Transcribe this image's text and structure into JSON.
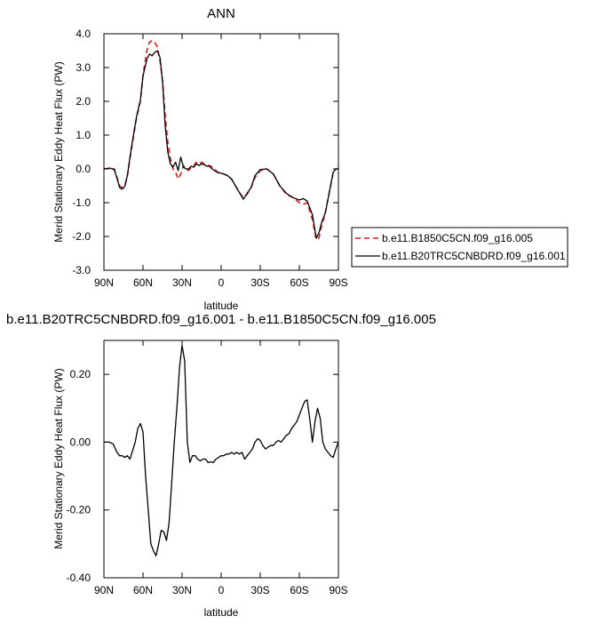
{
  "chart_data": [
    {
      "type": "line",
      "title": "ANN",
      "xlabel": "latitude",
      "ylabel": "Merid Stationary Eddy Heat Flux (PW)",
      "xlim": [
        90,
        -90
      ],
      "ylim": [
        -3.0,
        4.0
      ],
      "xticks": [
        90,
        60,
        30,
        0,
        -30,
        -60,
        -90
      ],
      "xtick_labels": [
        "90N",
        "60N",
        "30N",
        "0",
        "30S",
        "60S",
        "90S"
      ],
      "yticks": [
        -3.0,
        -2.0,
        -1.0,
        0.0,
        1.0,
        2.0,
        3.0,
        4.0
      ],
      "ytick_labels": [
        "-3.0",
        "-2.0",
        "-1.0",
        "0.0",
        "1.0",
        "2.0",
        "3.0",
        "4.0"
      ],
      "legend": "outside-right",
      "series": [
        {
          "name": "b.e11.B1850C5CN.f09_g16.005",
          "color": "#e41a1c",
          "dash": "dashed",
          "x": [
            90,
            85,
            82,
            80,
            78,
            76,
            74,
            72,
            70,
            68,
            65,
            62,
            60,
            57,
            55,
            53,
            51,
            49,
            47,
            45,
            43,
            41,
            39,
            37,
            35,
            33,
            31,
            29,
            27,
            25,
            23,
            21,
            19,
            17,
            15,
            13,
            11,
            9,
            7,
            5,
            3,
            1,
            -2,
            -5,
            -8,
            -11,
            -14,
            -17,
            -20,
            -23,
            -26,
            -30,
            -35,
            -40,
            -45,
            -50,
            -55,
            -60,
            -63,
            -66,
            -70,
            -73,
            -75,
            -77,
            -80,
            -83,
            -86,
            -88,
            -90
          ],
          "y": [
            0.0,
            0.02,
            0.0,
            -0.25,
            -0.5,
            -0.55,
            -0.5,
            -0.2,
            0.3,
            0.8,
            1.5,
            2.0,
            2.8,
            3.5,
            3.75,
            3.8,
            3.75,
            3.6,
            3.2,
            2.6,
            1.6,
            0.8,
            0.3,
            0.0,
            -0.1,
            -0.3,
            -0.15,
            0.1,
            0.0,
            -0.05,
            0.05,
            0.1,
            0.2,
            0.15,
            0.2,
            0.15,
            0.1,
            0.1,
            0.05,
            0.0,
            -0.1,
            -0.1,
            -0.15,
            -0.2,
            -0.3,
            -0.5,
            -0.7,
            -0.85,
            -0.75,
            -0.55,
            -0.25,
            -0.05,
            0.0,
            -0.15,
            -0.5,
            -0.75,
            -0.85,
            -1.0,
            -1.05,
            -1.0,
            -1.5,
            -2.1,
            -2.05,
            -1.7,
            -1.3,
            -0.7,
            -0.1,
            0.0,
            0.0
          ]
        },
        {
          "name": "b.e11.B20TRC5CNBDRD.f09_g16.001",
          "color": "#000000",
          "dash": "solid",
          "x": [
            90,
            85,
            82,
            80,
            78,
            76,
            74,
            72,
            70,
            68,
            65,
            62,
            60,
            57,
            55,
            53,
            51,
            49,
            47,
            45,
            43,
            41,
            39,
            37,
            35,
            33,
            31,
            29,
            27,
            25,
            23,
            21,
            19,
            17,
            15,
            13,
            11,
            9,
            7,
            5,
            3,
            1,
            -2,
            -5,
            -8,
            -11,
            -14,
            -17,
            -20,
            -23,
            -26,
            -30,
            -35,
            -40,
            -45,
            -50,
            -55,
            -60,
            -63,
            -66,
            -70,
            -73,
            -75,
            -77,
            -80,
            -83,
            -86,
            -88,
            -90
          ],
          "y": [
            0.0,
            0.02,
            -0.03,
            -0.28,
            -0.55,
            -0.6,
            -0.52,
            -0.2,
            0.35,
            0.85,
            1.55,
            2.05,
            2.75,
            3.25,
            3.4,
            3.35,
            3.45,
            3.5,
            3.3,
            2.6,
            1.3,
            0.5,
            0.15,
            0.05,
            0.2,
            -0.05,
            0.35,
            0.05,
            0.0,
            0.0,
            0.08,
            0.05,
            0.15,
            0.1,
            0.15,
            0.12,
            0.08,
            0.08,
            0.0,
            -0.05,
            -0.1,
            -0.12,
            -0.15,
            -0.2,
            -0.3,
            -0.5,
            -0.7,
            -0.9,
            -0.72,
            -0.55,
            -0.2,
            -0.02,
            0.0,
            -0.15,
            -0.5,
            -0.72,
            -0.85,
            -0.92,
            -0.88,
            -0.95,
            -1.35,
            -2.05,
            -1.9,
            -1.6,
            -1.3,
            -0.7,
            -0.1,
            0.0,
            0.0
          ]
        }
      ]
    },
    {
      "type": "line",
      "title": "b.e11.B20TRC5CNBDRD.f09_g16.001 - b.e11.B1850C5CN.f09_g16.005",
      "xlabel": "latitude",
      "ylabel": "Merid Stationary Eddy Heat Flux (PW)",
      "xlim": [
        90,
        -90
      ],
      "ylim": [
        -0.4,
        0.3
      ],
      "xticks": [
        90,
        60,
        30,
        0,
        -30,
        -60,
        -90
      ],
      "xtick_labels": [
        "90N",
        "60N",
        "30N",
        "0",
        "30S",
        "60S",
        "90S"
      ],
      "yticks": [
        -0.4,
        -0.2,
        0.0,
        0.2
      ],
      "ytick_labels": [
        "-0.40",
        "-0.20",
        "0.00",
        "0.20"
      ],
      "series": [
        {
          "color": "#000000",
          "dash": "solid",
          "x": [
            90,
            86,
            83,
            80,
            78,
            76,
            74,
            72,
            70,
            68,
            66,
            64,
            62,
            60,
            58,
            56,
            54,
            52,
            50,
            48,
            46,
            44,
            42,
            40,
            38,
            36,
            34,
            32,
            30,
            28,
            26,
            24,
            22,
            20,
            18,
            16,
            14,
            12,
            10,
            8,
            6,
            4,
            2,
            0,
            -2,
            -4,
            -6,
            -8,
            -10,
            -12,
            -14,
            -16,
            -18,
            -20,
            -22,
            -24,
            -26,
            -28,
            -30,
            -32,
            -34,
            -36,
            -38,
            -40,
            -42,
            -44,
            -46,
            -48,
            -50,
            -52,
            -54,
            -56,
            -58,
            -60,
            -62,
            -64,
            -66,
            -68,
            -70,
            -72,
            -74,
            -76,
            -78,
            -80,
            -82,
            -84,
            -86,
            -88,
            -90
          ],
          "y": [
            0.0,
            0.0,
            -0.005,
            -0.03,
            -0.04,
            -0.04,
            -0.045,
            -0.04,
            -0.05,
            -0.025,
            0.0,
            0.04,
            0.055,
            0.03,
            -0.1,
            -0.2,
            -0.3,
            -0.32,
            -0.335,
            -0.3,
            -0.26,
            -0.265,
            -0.29,
            -0.24,
            -0.12,
            0.0,
            0.1,
            0.22,
            0.285,
            0.24,
            0.0,
            -0.06,
            -0.04,
            -0.04,
            -0.05,
            -0.055,
            -0.05,
            -0.05,
            -0.06,
            -0.058,
            -0.06,
            -0.05,
            -0.045,
            -0.04,
            -0.04,
            -0.035,
            -0.035,
            -0.03,
            -0.035,
            -0.03,
            -0.035,
            -0.03,
            -0.05,
            -0.04,
            -0.03,
            -0.02,
            0.0,
            0.01,
            0.005,
            -0.01,
            -0.02,
            -0.015,
            -0.01,
            -0.01,
            0.0,
            0.005,
            0.0,
            0.01,
            0.02,
            0.025,
            0.04,
            0.05,
            0.06,
            0.08,
            0.1,
            0.12,
            0.125,
            0.07,
            0.0,
            0.06,
            0.1,
            0.07,
            0.0,
            -0.02,
            -0.03,
            -0.04,
            -0.045,
            -0.02,
            0.0
          ]
        }
      ]
    }
  ]
}
